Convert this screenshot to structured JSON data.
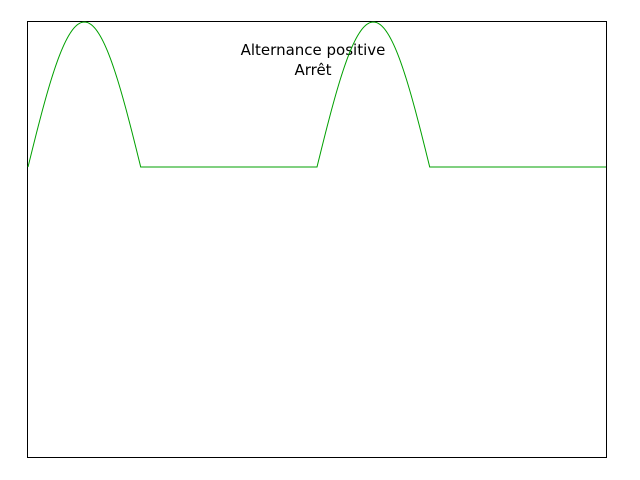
{
  "chart_data": {
    "type": "line",
    "title": "Alternance positive",
    "subtitle": "Arrêt",
    "xlabel": "",
    "ylabel": "",
    "xlim": [
      0,
      4
    ],
    "ylim": [
      -2,
      1
    ],
    "grid": false,
    "series": [
      {
        "color": "#00a000",
        "x": [
          0,
          0.1,
          0.2,
          0.3,
          0.4,
          0.5,
          0.6,
          0.7,
          0.8,
          0.9,
          1.0,
          1.4,
          1.5,
          2.0,
          2.1,
          2.2,
          2.3,
          2.4,
          2.5,
          2.6,
          2.7,
          2.8,
          2.9,
          3.0,
          4.0
        ],
        "y": [
          0,
          0.5,
          0.85,
          1.0,
          0.95,
          0.73,
          0.42,
          0.07,
          0,
          0,
          0,
          0,
          0,
          0,
          0.5,
          0.85,
          1.0,
          0.95,
          0.73,
          0.42,
          0.07,
          0,
          0,
          0,
          0
        ]
      }
    ]
  }
}
